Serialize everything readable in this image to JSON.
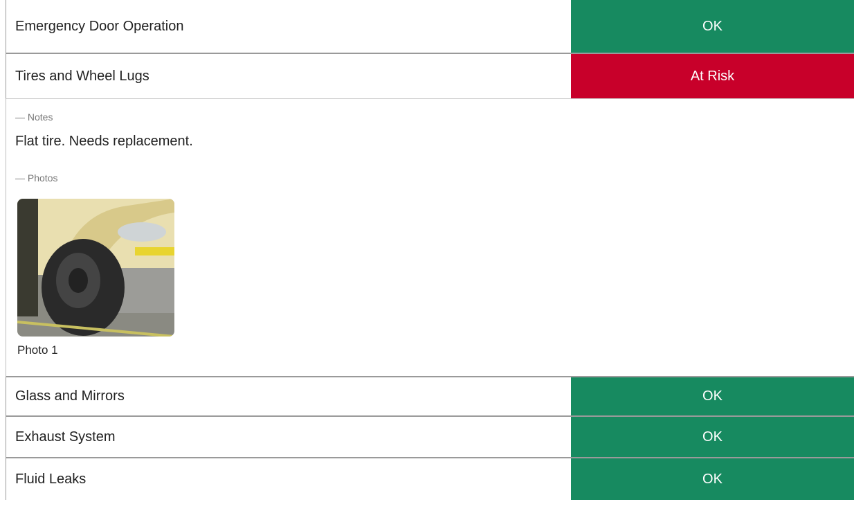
{
  "items": [
    {
      "label": "Emergency Door Operation",
      "status": "OK"
    },
    {
      "label": "Tires and Wheel Lugs",
      "status": "At Risk",
      "notes_heading": "— Notes",
      "notes": "Flat tire. Needs replacement.",
      "photos_heading": "— Photos",
      "photo_caption": "Photo 1"
    },
    {
      "label": "Glass and Mirrors",
      "status": "OK"
    },
    {
      "label": "Exhaust System",
      "status": "OK"
    },
    {
      "label": "Fluid Leaks",
      "status": "OK"
    }
  ]
}
